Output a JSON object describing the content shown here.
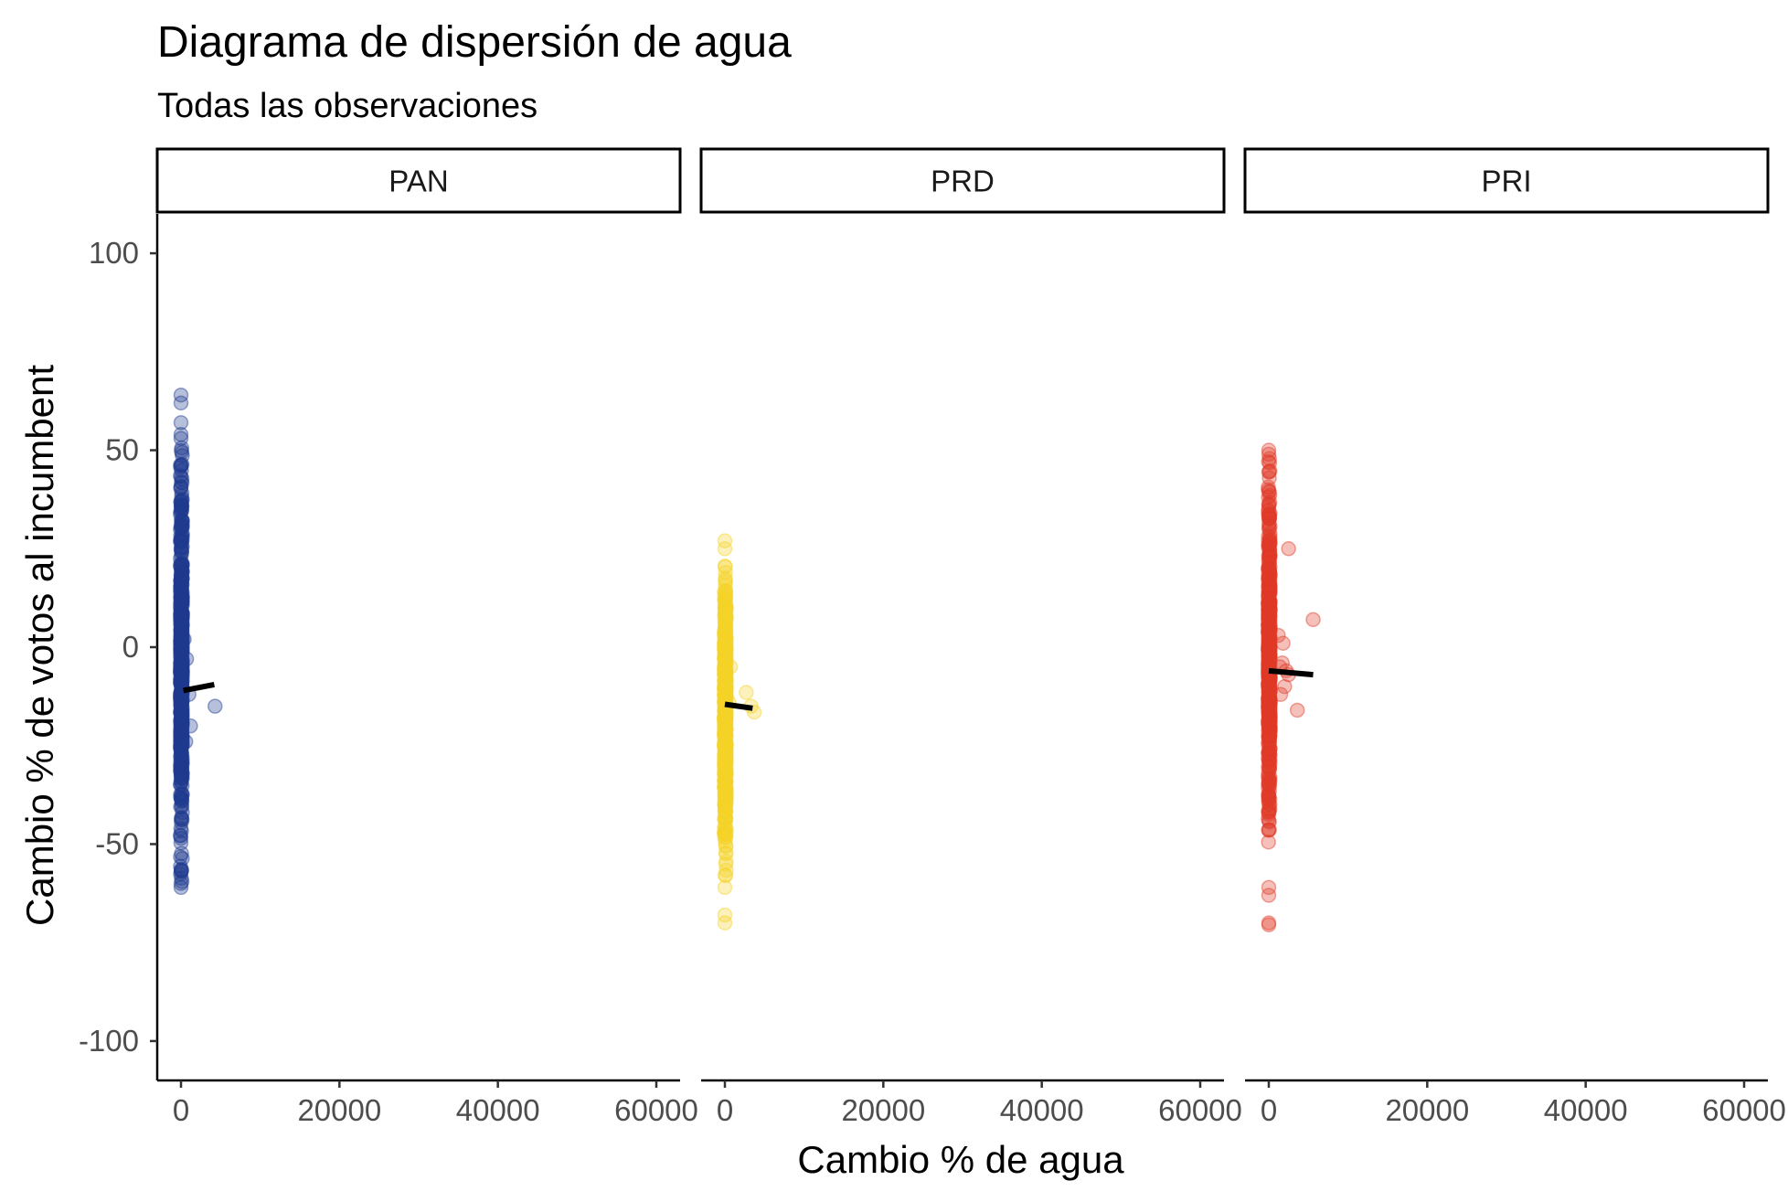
{
  "chart_data": {
    "type": "scatter",
    "title": "Diagrama de dispersión de agua",
    "subtitle": "Todas las observaciones",
    "xlabel": "Cambio % de agua",
    "ylabel": "Cambio % de votos al incumbent",
    "xlim": [
      -3000,
      63000
    ],
    "ylim": [
      -110,
      110
    ],
    "x_ticks": [
      0,
      20000,
      40000,
      60000
    ],
    "x_tick_labels": [
      "0",
      "20000",
      "40000",
      "60000"
    ],
    "y_ticks": [
      100,
      50,
      0,
      -50,
      -100
    ],
    "y_tick_labels": [
      "100",
      "50",
      "0",
      "-50",
      "-100"
    ],
    "grid": false,
    "legend": "none",
    "facets": [
      {
        "name": "PAN",
        "color": "#1f3a8f",
        "bulk_x_range": [
          -80,
          180
        ],
        "bulk_y_range": [
          -60,
          52
        ],
        "extreme_points": [
          [
            0,
            64
          ],
          [
            0,
            62
          ],
          [
            0,
            57
          ],
          [
            0,
            54
          ],
          [
            0,
            53
          ],
          [
            0,
            -60
          ],
          [
            0,
            -61
          ],
          [
            400,
            2
          ],
          [
            700,
            -3
          ],
          [
            1000,
            -12
          ],
          [
            1200,
            -20
          ],
          [
            4300,
            -15
          ],
          [
            600,
            -24
          ]
        ],
        "fit": {
          "x": [
            300,
            4200
          ],
          "y": [
            -11,
            -9.5
          ]
        }
      },
      {
        "name": "PRD",
        "color": "#f5d327",
        "bulk_x_range": [
          -80,
          180
        ],
        "bulk_y_range": [
          -58,
          22
        ],
        "extreme_points": [
          [
            0,
            27
          ],
          [
            0,
            25
          ],
          [
            0,
            -68
          ],
          [
            0,
            -70
          ],
          [
            0,
            -61
          ],
          [
            700,
            -5
          ],
          [
            2700,
            -11.5
          ],
          [
            3700,
            -16.5
          ],
          [
            3300,
            -15
          ],
          [
            500,
            -14
          ]
        ],
        "fit": {
          "x": [
            0,
            3500
          ],
          "y": [
            -14.5,
            -15.5
          ]
        }
      },
      {
        "name": "PRI",
        "color": "#e03a28",
        "bulk_x_range": [
          -80,
          180
        ],
        "bulk_y_range": [
          -50,
          48
        ],
        "extreme_points": [
          [
            0,
            50
          ],
          [
            0,
            49
          ],
          [
            0,
            -61
          ],
          [
            0,
            -63
          ],
          [
            0,
            -70
          ],
          [
            0,
            -70.5
          ],
          [
            2500,
            25
          ],
          [
            5600,
            7
          ],
          [
            1800,
            1
          ],
          [
            1200,
            3
          ],
          [
            1400,
            -5
          ],
          [
            1700,
            -4
          ],
          [
            2200,
            -6
          ],
          [
            2500,
            -7
          ],
          [
            2000,
            -10
          ],
          [
            3600,
            -16
          ],
          [
            1500,
            -12
          ]
        ],
        "fit": {
          "x": [
            0,
            5600
          ],
          "y": [
            -6,
            -7
          ]
        }
      }
    ]
  }
}
